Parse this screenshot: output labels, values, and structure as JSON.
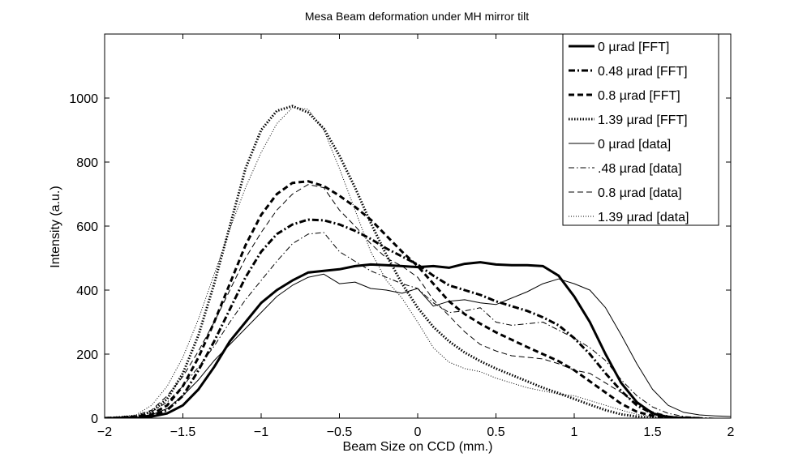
{
  "chart_data": {
    "type": "line",
    "title": "Mesa Beam deformation under MH mirror tilt",
    "xlabel": "Beam Size on CCD (mm.)",
    "ylabel": "Intensity (a.u.)",
    "xlim": [
      -2,
      2
    ],
    "ylim": [
      0,
      1200
    ],
    "xticks": [
      -2,
      -1.5,
      -1,
      -0.5,
      0,
      0.5,
      1,
      1.5,
      2
    ],
    "xtick_labels": [
      "−2",
      "−1.5",
      "−1",
      "−0.5",
      "0",
      "0.5",
      "1",
      "1.5",
      "2"
    ],
    "yticks": [
      0,
      200,
      400,
      600,
      800,
      1000
    ],
    "ytick_labels": [
      "0",
      "200",
      "400",
      "600",
      "800",
      "1000"
    ],
    "grid": false,
    "legend_position": "top-right",
    "series": [
      {
        "name": "0 µrad [FFT]",
        "style": "solid",
        "weight": "thick",
        "x": [
          -2,
          -1.8,
          -1.7,
          -1.6,
          -1.5,
          -1.4,
          -1.3,
          -1.2,
          -1.1,
          -1.0,
          -0.9,
          -0.8,
          -0.7,
          -0.6,
          -0.5,
          -0.4,
          -0.3,
          -0.2,
          -0.1,
          0,
          0.1,
          0.2,
          0.3,
          0.4,
          0.5,
          0.6,
          0.7,
          0.8,
          0.9,
          1.0,
          1.1,
          1.2,
          1.3,
          1.4,
          1.5,
          1.6,
          1.7,
          1.8
        ],
        "y": [
          0,
          0,
          5,
          15,
          40,
          90,
          160,
          240,
          300,
          360,
          400,
          430,
          455,
          460,
          465,
          475,
          480,
          478,
          475,
          472,
          475,
          470,
          482,
          487,
          480,
          478,
          478,
          475,
          445,
          380,
          300,
          200,
          110,
          50,
          15,
          3,
          0,
          0
        ]
      },
      {
        "name": "0.48 µrad [FFT]",
        "style": "dashdot",
        "weight": "thick",
        "x": [
          -2,
          -1.8,
          -1.7,
          -1.6,
          -1.5,
          -1.4,
          -1.3,
          -1.2,
          -1.1,
          -1.0,
          -0.9,
          -0.8,
          -0.7,
          -0.6,
          -0.5,
          -0.4,
          -0.3,
          -0.2,
          -0.1,
          0,
          0.1,
          0.2,
          0.3,
          0.4,
          0.5,
          0.6,
          0.7,
          0.8,
          0.9,
          1.0,
          1.1,
          1.2,
          1.3,
          1.4,
          1.5,
          1.6,
          1.7,
          1.8
        ],
        "y": [
          0,
          2,
          8,
          25,
          70,
          150,
          240,
          340,
          440,
          520,
          575,
          605,
          620,
          618,
          605,
          585,
          560,
          530,
          505,
          480,
          445,
          415,
          400,
          385,
          365,
          350,
          335,
          315,
          290,
          250,
          200,
          140,
          85,
          40,
          14,
          4,
          1,
          0
        ]
      },
      {
        "name": "0.8 µrad [FFT]",
        "style": "dashed",
        "weight": "thick",
        "x": [
          -2,
          -1.8,
          -1.7,
          -1.6,
          -1.5,
          -1.4,
          -1.3,
          -1.2,
          -1.1,
          -1.0,
          -0.9,
          -0.8,
          -0.7,
          -0.6,
          -0.5,
          -0.4,
          -0.3,
          -0.2,
          -0.1,
          0,
          0.1,
          0.2,
          0.3,
          0.4,
          0.5,
          0.6,
          0.7,
          0.8,
          0.9,
          1.0,
          1.1,
          1.2,
          1.3,
          1.4,
          1.5,
          1.6,
          1.7,
          1.8
        ],
        "y": [
          0,
          3,
          12,
          40,
          100,
          190,
          300,
          420,
          540,
          635,
          700,
          735,
          740,
          725,
          695,
          660,
          620,
          570,
          520,
          475,
          420,
          365,
          325,
          295,
          268,
          245,
          222,
          200,
          178,
          150,
          115,
          80,
          45,
          20,
          7,
          2,
          0,
          0
        ]
      },
      {
        "name": "1.39 µrad [FFT]",
        "style": "dotted",
        "weight": "thick",
        "x": [
          -2,
          -1.8,
          -1.7,
          -1.6,
          -1.5,
          -1.4,
          -1.3,
          -1.2,
          -1.1,
          -1.0,
          -0.9,
          -0.8,
          -0.7,
          -0.6,
          -0.5,
          -0.4,
          -0.3,
          -0.2,
          -0.1,
          0,
          0.1,
          0.2,
          0.3,
          0.4,
          0.5,
          0.6,
          0.7,
          0.8,
          0.9,
          1.0,
          1.1,
          1.2,
          1.3,
          1.4,
          1.5,
          1.6,
          1.7,
          1.8
        ],
        "y": [
          0,
          5,
          20,
          60,
          140,
          260,
          420,
          600,
          780,
          900,
          960,
          975,
          955,
          905,
          820,
          720,
          610,
          510,
          420,
          345,
          285,
          240,
          205,
          178,
          155,
          135,
          115,
          95,
          78,
          60,
          42,
          25,
          12,
          5,
          1,
          0,
          0,
          0
        ]
      },
      {
        "name": "0 µrad [data]",
        "style": "solid",
        "weight": "thin",
        "x": [
          -2,
          -1.8,
          -1.7,
          -1.6,
          -1.5,
          -1.4,
          -1.3,
          -1.2,
          -1.1,
          -1.0,
          -0.9,
          -0.8,
          -0.7,
          -0.6,
          -0.5,
          -0.4,
          -0.3,
          -0.2,
          -0.1,
          0,
          0.1,
          0.2,
          0.3,
          0.4,
          0.5,
          0.6,
          0.7,
          0.8,
          0.9,
          1.0,
          1.1,
          1.2,
          1.3,
          1.4,
          1.5,
          1.6,
          1.7,
          1.8,
          1.9,
          2.0
        ],
        "y": [
          0,
          2,
          10,
          30,
          70,
          120,
          180,
          230,
          280,
          330,
          380,
          415,
          440,
          450,
          420,
          425,
          405,
          400,
          390,
          405,
          350,
          365,
          370,
          360,
          355,
          375,
          395,
          420,
          435,
          420,
          400,
          345,
          260,
          170,
          90,
          40,
          18,
          10,
          7,
          5
        ]
      },
      {
        "name": ".48 µrad [data]",
        "style": "dashdot",
        "weight": "thin",
        "x": [
          -2,
          -1.8,
          -1.7,
          -1.6,
          -1.5,
          -1.4,
          -1.3,
          -1.2,
          -1.1,
          -1.0,
          -0.9,
          -0.8,
          -0.7,
          -0.6,
          -0.5,
          -0.4,
          -0.3,
          -0.2,
          -0.1,
          0,
          0.1,
          0.2,
          0.3,
          0.4,
          0.5,
          0.6,
          0.7,
          0.8,
          0.9,
          1.0,
          1.1,
          1.2,
          1.3,
          1.4,
          1.5,
          1.6,
          1.7,
          1.8,
          1.9
        ],
        "y": [
          0,
          5,
          20,
          50,
          100,
          160,
          225,
          300,
          370,
          430,
          490,
          545,
          575,
          580,
          520,
          490,
          460,
          440,
          420,
          405,
          360,
          330,
          335,
          345,
          300,
          290,
          295,
          300,
          275,
          250,
          220,
          180,
          120,
          70,
          35,
          15,
          5,
          2,
          0
        ]
      },
      {
        "name": "0.8 µrad [data]",
        "style": "dashed",
        "weight": "thin",
        "x": [
          -2,
          -1.8,
          -1.7,
          -1.6,
          -1.5,
          -1.4,
          -1.3,
          -1.2,
          -1.1,
          -1.0,
          -0.9,
          -0.8,
          -0.7,
          -0.6,
          -0.5,
          -0.4,
          -0.3,
          -0.2,
          -0.1,
          0,
          0.1,
          0.2,
          0.3,
          0.4,
          0.5,
          0.6,
          0.7,
          0.8,
          0.9,
          1.0,
          1.1,
          1.2,
          1.3,
          1.4,
          1.5,
          1.6,
          1.7,
          1.8
        ],
        "y": [
          0,
          8,
          25,
          70,
          130,
          210,
          300,
          400,
          500,
          580,
          650,
          700,
          730,
          720,
          650,
          600,
          545,
          500,
          475,
          440,
          370,
          320,
          270,
          230,
          210,
          195,
          190,
          185,
          170,
          150,
          140,
          110,
          80,
          45,
          20,
          7,
          2,
          0
        ]
      },
      {
        "name": "1.39 µrad [data]",
        "style": "dotted",
        "weight": "thin",
        "x": [
          -2,
          -1.8,
          -1.7,
          -1.6,
          -1.5,
          -1.4,
          -1.3,
          -1.2,
          -1.1,
          -1.0,
          -0.9,
          -0.8,
          -0.7,
          -0.6,
          -0.5,
          -0.4,
          -0.3,
          -0.2,
          -0.1,
          0,
          0.1,
          0.2,
          0.3,
          0.4,
          0.5,
          0.6,
          0.7,
          0.8,
          0.9,
          1.0,
          1.1,
          1.2,
          1.3,
          1.4,
          1.5,
          1.6,
          1.7,
          1.8
        ],
        "y": [
          0,
          10,
          40,
          100,
          190,
          310,
          450,
          590,
          720,
          830,
          920,
          970,
          965,
          900,
          780,
          650,
          520,
          430,
          375,
          300,
          220,
          175,
          155,
          145,
          125,
          110,
          95,
          85,
          75,
          70,
          55,
          40,
          25,
          12,
          5,
          2,
          0,
          0
        ]
      }
    ]
  }
}
